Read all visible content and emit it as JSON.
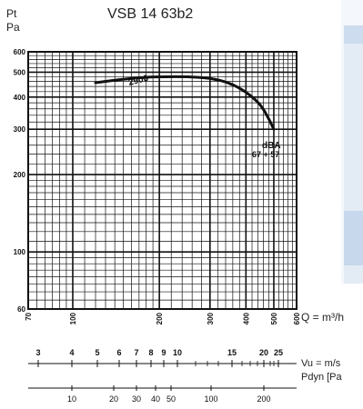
{
  "chart_data": {
    "type": "line",
    "title": "VSB 14 63b2",
    "ylabel_top": "Pt",
    "ylabel_bottom": "Pa",
    "xlabel": "Q = m³/h",
    "scale_vu_label": "Vu = m/s",
    "scale_pdyn_label": "Pdyn [Pa",
    "yscale": "log",
    "xscale": "log",
    "xlim": [
      70,
      600
    ],
    "ylim": [
      60,
      600
    ],
    "y_ticks": [
      "60",
      "100",
      "200",
      "300",
      "400",
      "500",
      "600"
    ],
    "x_ticks": [
      "70",
      "100",
      "200",
      "300",
      "400",
      "500",
      "600"
    ],
    "vu_ticks": [
      "3",
      "4",
      "5",
      "6",
      "7",
      "8",
      "9",
      "10",
      "15",
      "20",
      "25"
    ],
    "pdyn_ticks": [
      "10",
      "20",
      "30",
      "40",
      "50",
      "100",
      "200"
    ],
    "series": [
      {
        "name": "2900",
        "x": [
          120,
          150,
          180,
          210,
          250,
          300,
          350,
          400,
          450,
          480,
          500
        ],
        "y": [
          455,
          470,
          478,
          480,
          480,
          475,
          455,
          420,
          375,
          330,
          300
        ]
      }
    ],
    "annotations": [
      "dBA",
      "67 + 57"
    ],
    "grid": true,
    "colors": {
      "line": "#111111",
      "grid": "#111111",
      "panel": "#e3ebf5",
      "panel_dark": "#c8d8ec"
    }
  }
}
